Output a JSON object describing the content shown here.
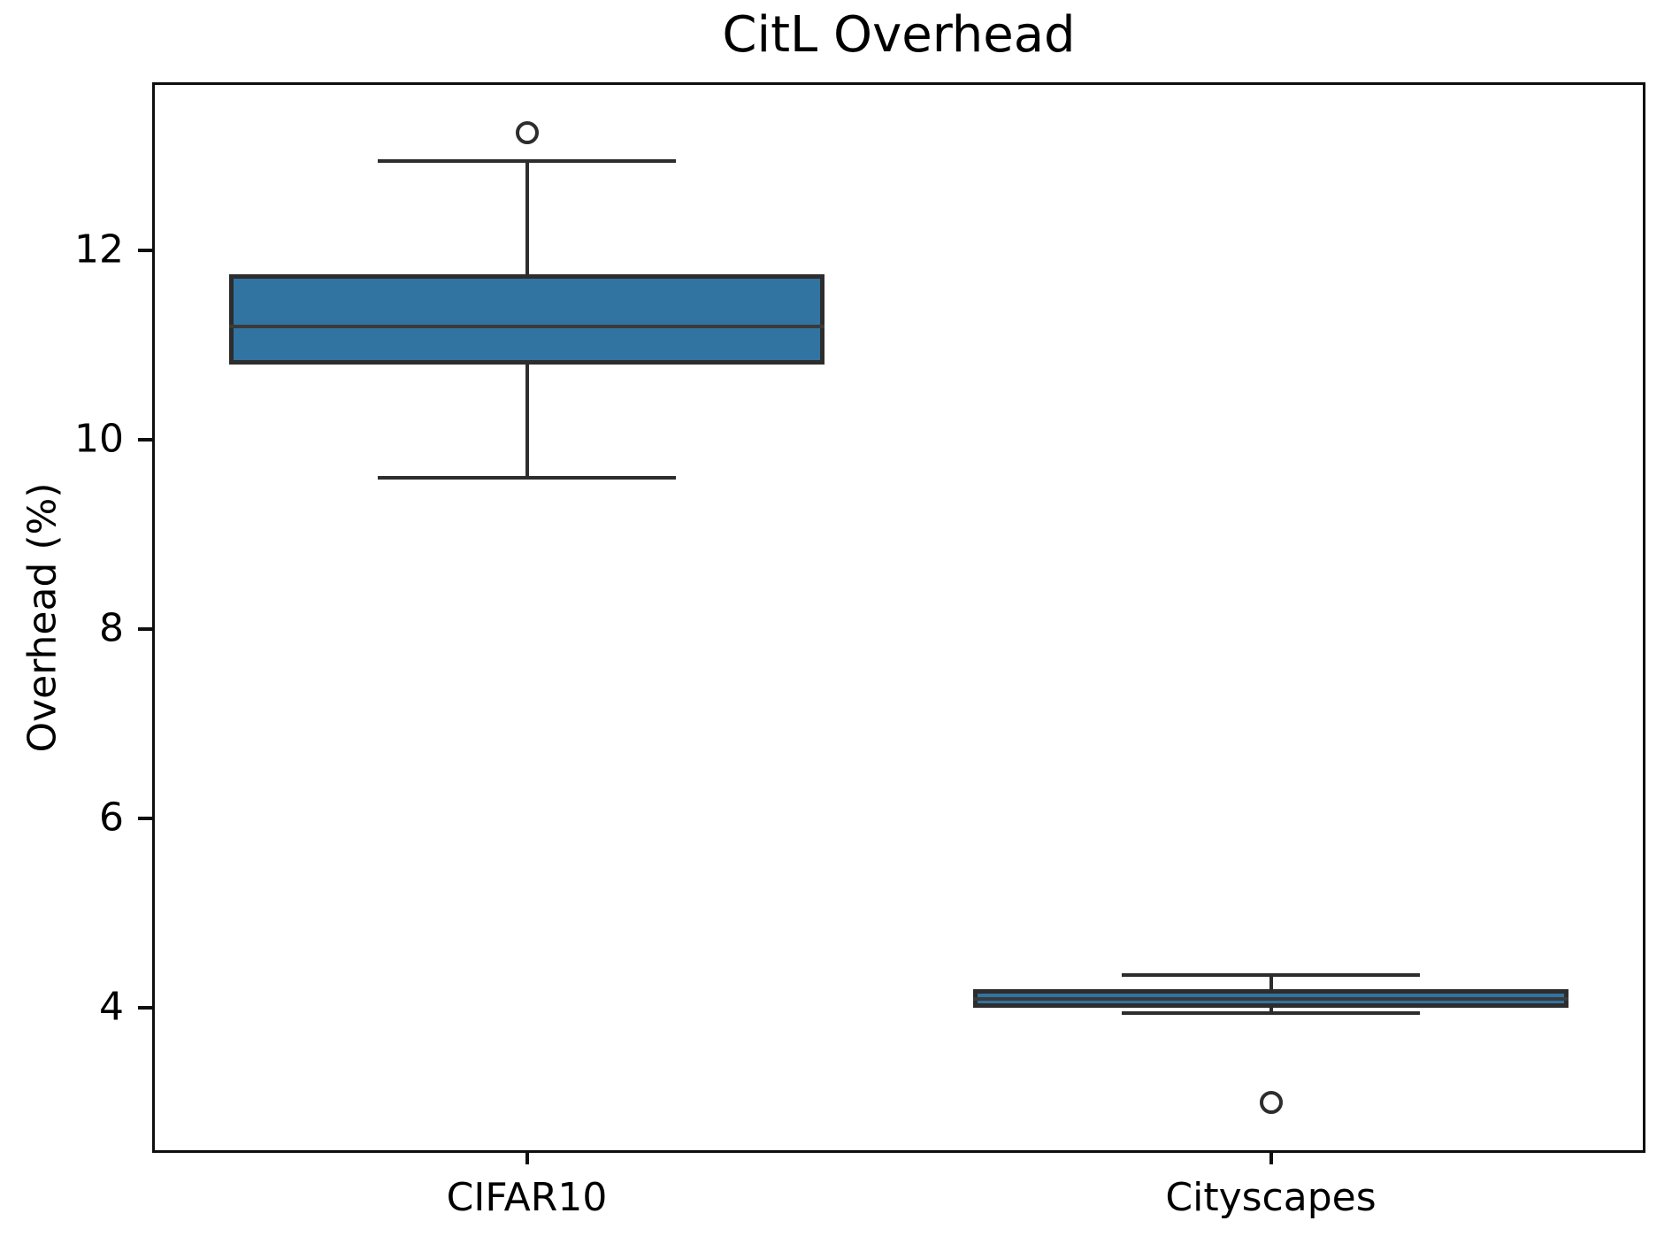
{
  "title": "CitL Overhead",
  "chart_data": {
    "type": "boxplot",
    "title": "CitL Overhead",
    "xlabel": "",
    "ylabel": "Overhead (%)",
    "categories": [
      "CIFAR10",
      "Cityscapes"
    ],
    "yticks": [
      "4",
      "6",
      "8",
      "10",
      "12"
    ],
    "ytick_values": [
      4,
      6,
      8,
      10,
      12
    ],
    "ylim": [
      2.5,
      13.75
    ],
    "grid": false,
    "legend": "none",
    "series": [
      {
        "name": "CIFAR10",
        "whisker_low": 9.6,
        "q1": 10.8,
        "median": 11.2,
        "q3": 11.75,
        "whisker_high": 12.95,
        "outliers": [
          13.25
        ]
      },
      {
        "name": "Cityscapes",
        "whisker_low": 3.95,
        "q1": 4.0,
        "median": 4.1,
        "q3": 4.2,
        "whisker_high": 4.35,
        "outliers": [
          3.0
        ]
      }
    ],
    "colors": {
      "box_fill": "#3274a1",
      "box_edge": "#2d2d2d",
      "median": "#3a3a3a",
      "whisker": "#2d2d2d",
      "outlier_edge": "#2d2d2d",
      "frame": "#0f0f0f",
      "text": "#000000",
      "background": "#ffffff"
    }
  }
}
